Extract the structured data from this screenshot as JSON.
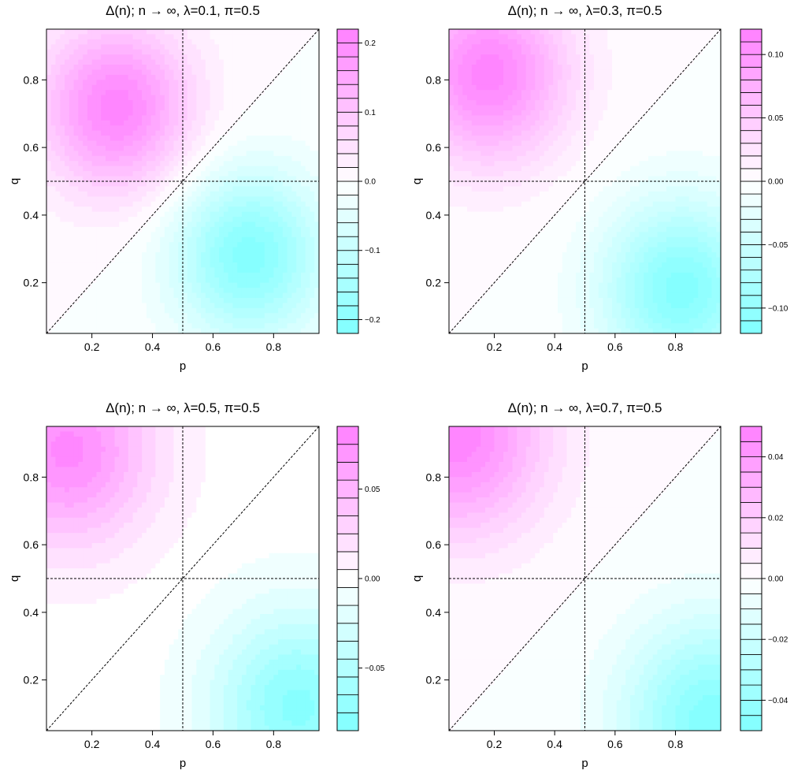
{
  "chart_data": [
    {
      "type": "heatmap",
      "title": "Δ(n); n → ∞, λ=0.1, π=0.5",
      "xlabel": "p",
      "ylabel": "q",
      "xlim": [
        0.05,
        0.95
      ],
      "ylim": [
        0.05,
        0.95
      ],
      "xticks": [
        "0.2",
        "0.4",
        "0.6",
        "0.8"
      ],
      "yticks": [
        "0.2",
        "0.4",
        "0.6",
        "0.8"
      ],
      "field": {
        "lambda": 0.1,
        "centers": [
          {
            "p": 0.28,
            "q": 0.72,
            "value": 0.21
          },
          {
            "p": 0.72,
            "q": 0.28,
            "value": -0.21
          }
        ]
      },
      "colorbar": {
        "min": -0.22,
        "max": 0.22,
        "levels": 22,
        "ticks": [
          -0.2,
          -0.1,
          0.0,
          0.1,
          0.2
        ],
        "tick_labels": [
          "−0.2",
          "−0.1",
          "0.0",
          "0.1",
          "0.2"
        ]
      },
      "reference_lines": [
        "p = 0.5",
        "q = 0.5",
        "q = p"
      ]
    },
    {
      "type": "heatmap",
      "title": "Δ(n); n → ∞, λ=0.3, π=0.5",
      "xlabel": "p",
      "ylabel": "q",
      "xlim": [
        0.05,
        0.95
      ],
      "ylim": [
        0.05,
        0.95
      ],
      "xticks": [
        "0.2",
        "0.4",
        "0.6",
        "0.8"
      ],
      "yticks": [
        "0.2",
        "0.4",
        "0.6",
        "0.8"
      ],
      "field": {
        "lambda": 0.3,
        "centers": [
          {
            "p": 0.18,
            "q": 0.82,
            "value": 0.115
          },
          {
            "p": 0.82,
            "q": 0.18,
            "value": -0.115
          }
        ]
      },
      "colorbar": {
        "min": -0.12,
        "max": 0.12,
        "levels": 24,
        "ticks": [
          -0.1,
          -0.05,
          0.0,
          0.05,
          0.1
        ],
        "tick_labels": [
          "−0.10",
          "−0.05",
          "0.00",
          "0.05",
          "0.10"
        ]
      },
      "reference_lines": [
        "p = 0.5",
        "q = 0.5",
        "q = p"
      ]
    },
    {
      "type": "heatmap",
      "title": "Δ(n); n → ∞, λ=0.5, π=0.5",
      "xlabel": "p",
      "ylabel": "q",
      "xlim": [
        0.05,
        0.95
      ],
      "ylim": [
        0.05,
        0.95
      ],
      "xticks": [
        "0.2",
        "0.4",
        "0.6",
        "0.8"
      ],
      "yticks": [
        "0.2",
        "0.4",
        "0.6",
        "0.8"
      ],
      "field": {
        "lambda": 0.5,
        "centers": [
          {
            "p": 0.12,
            "q": 0.88,
            "value": 0.078
          },
          {
            "p": 0.88,
            "q": 0.12,
            "value": -0.078
          }
        ]
      },
      "colorbar": {
        "min": -0.085,
        "max": 0.085,
        "levels": 17,
        "ticks": [
          -0.05,
          0.0,
          0.05
        ],
        "tick_labels": [
          "−0.05",
          "0.00",
          "0.05"
        ]
      },
      "reference_lines": [
        "p = 0.5",
        "q = 0.5",
        "q = p"
      ]
    },
    {
      "type": "heatmap",
      "title": "Δ(n); n → ∞, λ=0.7, π=0.5",
      "xlabel": "p",
      "ylabel": "q",
      "xlim": [
        0.05,
        0.95
      ],
      "ylim": [
        0.05,
        0.95
      ],
      "xticks": [
        "0.2",
        "0.4",
        "0.6",
        "0.8"
      ],
      "yticks": [
        "0.2",
        "0.4",
        "0.6",
        "0.8"
      ],
      "field": {
        "lambda": 0.7,
        "centers": [
          {
            "p": 0.08,
            "q": 0.92,
            "value": 0.048
          },
          {
            "p": 0.92,
            "q": 0.08,
            "value": -0.048
          }
        ]
      },
      "colorbar": {
        "min": -0.05,
        "max": 0.05,
        "levels": 20,
        "ticks": [
          -0.04,
          -0.02,
          0.0,
          0.02,
          0.04
        ],
        "tick_labels": [
          "−0.04",
          "−0.02",
          "0.00",
          "0.02",
          "0.04"
        ]
      },
      "reference_lines": [
        "p = 0.5",
        "q = 0.5",
        "q = p"
      ]
    }
  ],
  "colors": {
    "positive": "#ff80ff",
    "negative": "#80ffff",
    "zero": "#ffffff",
    "line": "#000000"
  }
}
